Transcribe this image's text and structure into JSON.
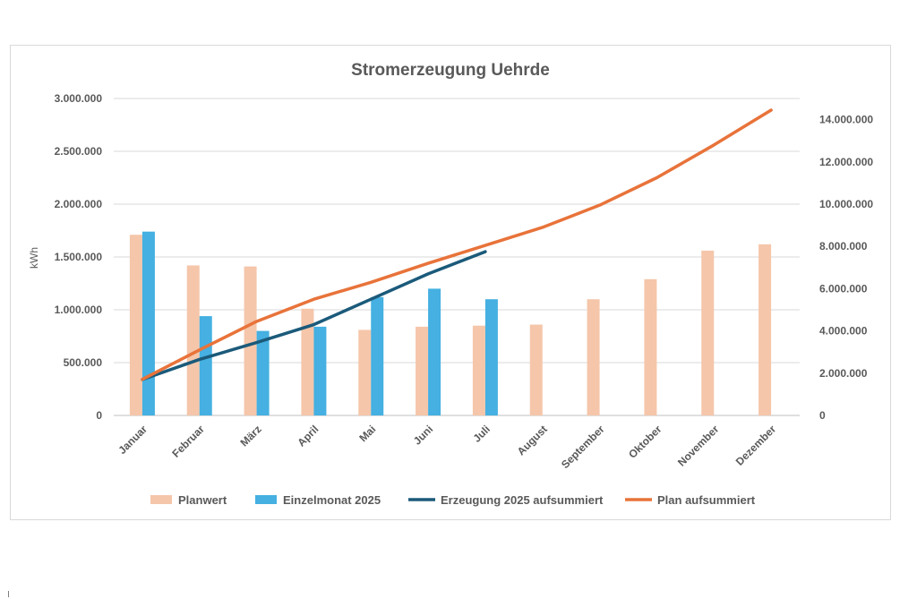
{
  "chart_data": {
    "type": "bar",
    "title": "Stromerzeugung Uehrde",
    "ylabel": "kWh",
    "y2label": "",
    "ylim": [
      0,
      3000000
    ],
    "y2lim": [
      0,
      15000000
    ],
    "yticks": [
      "0",
      "500.000",
      "1.000.000",
      "1.500.000",
      "2.000.000",
      "2.500.000",
      "3.000.000"
    ],
    "yticks_values": [
      0,
      500000,
      1000000,
      1500000,
      2000000,
      2500000,
      3000000
    ],
    "y2ticks": [
      "0",
      "2.000.000",
      "4.000.000",
      "6.000.000",
      "8.000.000",
      "10.000.000",
      "12.000.000",
      "14.000.000"
    ],
    "y2ticks_values": [
      0,
      2000000,
      4000000,
      6000000,
      8000000,
      10000000,
      12000000,
      14000000
    ],
    "categories": [
      "Januar",
      "Februar",
      "März",
      "April",
      "Mai",
      "Juni",
      "Juli",
      "August",
      "September",
      "Oktober",
      "November",
      "Dezember"
    ],
    "grid": true,
    "legend_position": "bottom",
    "series": [
      {
        "name": "Planwert",
        "type": "bar",
        "axis": "left",
        "color": "#f5c6aa",
        "values": [
          1710000,
          1420000,
          1410000,
          1010000,
          810000,
          840000,
          850000,
          860000,
          1100000,
          1290000,
          1560000,
          1620000
        ]
      },
      {
        "name": "Einzelmonat 2025",
        "type": "bar",
        "axis": "left",
        "color": "#45b0e1",
        "values": [
          1740000,
          940000,
          800000,
          840000,
          1120000,
          1200000,
          1100000,
          null,
          null,
          null,
          null,
          null
        ]
      },
      {
        "name": "Erzeugung 2025 aufsummiert",
        "type": "line",
        "axis": "right",
        "color": "#1b5a7a",
        "values": [
          1700000,
          2650000,
          3450000,
          4300000,
          5500000,
          6700000,
          7750000,
          null,
          null,
          null,
          null,
          null
        ]
      },
      {
        "name": "Plan aufsummiert",
        "type": "line",
        "axis": "right",
        "color": "#e8733a",
        "values": [
          1710000,
          3100000,
          4450000,
          5500000,
          6300000,
          7200000,
          8050000,
          8900000,
          9950000,
          11250000,
          12800000,
          14450000
        ]
      }
    ]
  }
}
